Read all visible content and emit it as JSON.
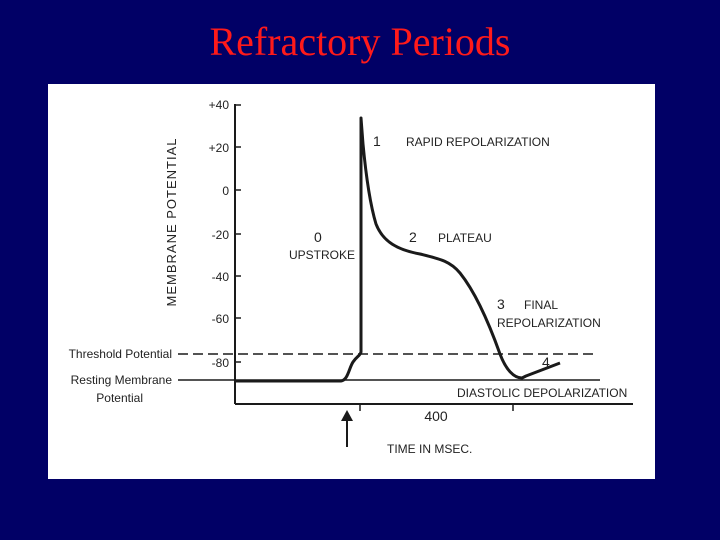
{
  "slide": {
    "title": "Refractory Periods",
    "background_color": "#010066",
    "title_color": "#ff1a1a"
  },
  "diagram": {
    "y_axis_label": "MEMBRANE POTENTIAL",
    "y_ticks": [
      "+40",
      "+20",
      "0",
      "-20",
      "-40",
      "-60",
      "-80"
    ],
    "x_axis_label": "TIME IN MSEC.",
    "x_tick_label": "400",
    "threshold_label": "Threshold Potential",
    "resting_label_line1": "Resting Membrane",
    "resting_label_line2": "Potential",
    "phases": [
      {
        "number": "0",
        "name": "UPSTROKE"
      },
      {
        "number": "1",
        "name": "RAPID REPOLARIZATION"
      },
      {
        "number": "2",
        "name": "PLATEAU"
      },
      {
        "number": "3",
        "name": "FINAL",
        "name_line2": "REPOLARIZATION"
      },
      {
        "number": "4",
        "name": "DIASTOLIC DEPOLARIZATION"
      }
    ],
    "stimulus_arrow": "up-arrow"
  }
}
